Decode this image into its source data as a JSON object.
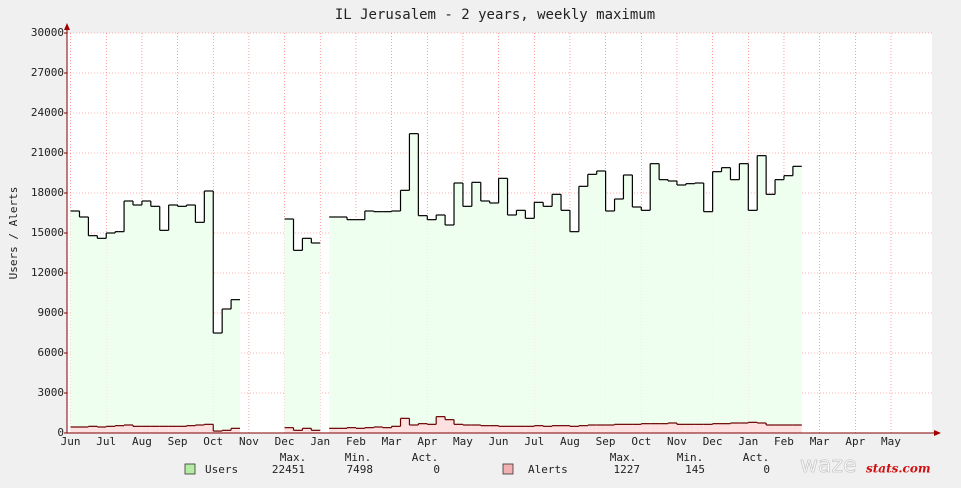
{
  "chart_data": {
    "type": "line",
    "title": "IL Jerusalem - 2 years, weekly maximum",
    "ylabel": "Users / Alerts",
    "step": true,
    "grid": true,
    "xlim": [
      -0.1,
      24.15
    ],
    "xticks": [
      {
        "value": 0,
        "label": "Jun"
      },
      {
        "value": 1,
        "label": "Jul"
      },
      {
        "value": 2,
        "label": "Aug"
      },
      {
        "value": 3,
        "label": "Sep"
      },
      {
        "value": 4,
        "label": "Oct"
      },
      {
        "value": 5,
        "label": "Nov"
      },
      {
        "value": 6,
        "label": "Dec"
      },
      {
        "value": 7,
        "label": "Jan"
      },
      {
        "value": 8,
        "label": "Feb"
      },
      {
        "value": 9,
        "label": "Mar"
      },
      {
        "value": 10,
        "label": "Apr"
      },
      {
        "value": 11,
        "label": "May"
      },
      {
        "value": 12,
        "label": "Jun"
      },
      {
        "value": 13,
        "label": "Jul"
      },
      {
        "value": 14,
        "label": "Aug"
      },
      {
        "value": 15,
        "label": "Sep"
      },
      {
        "value": 16,
        "label": "Oct"
      },
      {
        "value": 17,
        "label": "Nov"
      },
      {
        "value": 18,
        "label": "Dec"
      },
      {
        "value": 19,
        "label": "Jan"
      },
      {
        "value": 20,
        "label": "Feb"
      },
      {
        "value": 21,
        "label": "Mar"
      },
      {
        "value": 22,
        "label": "Apr"
      },
      {
        "value": 23,
        "label": "May"
      }
    ],
    "ylim": [
      0,
      30000
    ],
    "yticks": [
      0,
      3000,
      6000,
      9000,
      12000,
      15000,
      18000,
      21000,
      24000,
      27000,
      30000
    ],
    "x": [
      0,
      0.25,
      0.5,
      0.75,
      1,
      1.25,
      1.5,
      1.75,
      2,
      2.25,
      2.5,
      2.75,
      3,
      3.25,
      3.5,
      3.75,
      4,
      4.25,
      4.5,
      4.75,
      5,
      5.25,
      5.5,
      5.75,
      6,
      6.25,
      6.5,
      6.75,
      7,
      7.25,
      7.5,
      7.75,
      8,
      8.25,
      8.5,
      8.75,
      9,
      9.25,
      9.5,
      9.75,
      10,
      10.25,
      10.5,
      10.75,
      11,
      11.25,
      11.5,
      11.75,
      12,
      12.25,
      12.5,
      12.75,
      13,
      13.25,
      13.5,
      13.75,
      14,
      14.25,
      14.5,
      14.75,
      15,
      15.25,
      15.5,
      15.75,
      16,
      16.25,
      16.5,
      16.75,
      17,
      17.25,
      17.5,
      17.75,
      18,
      18.25,
      18.5,
      18.75,
      19,
      19.25,
      19.5,
      19.75,
      20,
      20.25
    ],
    "series": [
      {
        "name": "Users",
        "color": "#000000",
        "fill": "#efffef",
        "swatch": "#b4eca4",
        "values": [
          16650,
          16200,
          14800,
          14600,
          15000,
          15100,
          17400,
          17100,
          17400,
          17000,
          15200,
          17100,
          17000,
          17100,
          15800,
          18150,
          7498,
          9300,
          10000,
          null,
          null,
          null,
          null,
          null,
          16050,
          13700,
          14600,
          14250,
          null,
          16200,
          16200,
          16000,
          16000,
          16650,
          16600,
          16600,
          16650,
          18200,
          22451,
          16300,
          16000,
          16350,
          15600,
          18750,
          17000,
          18800,
          17400,
          17250,
          19100,
          16350,
          16700,
          16100,
          17300,
          17000,
          17900,
          16700,
          15100,
          18500,
          19400,
          19650,
          16650,
          17550,
          19350,
          16950,
          16700,
          20200,
          19000,
          18900,
          18600,
          18700,
          18750,
          16600,
          19600,
          19900,
          19000,
          20200,
          16700,
          20800,
          17900,
          19000,
          19300,
          20000
        ]
      },
      {
        "name": "Alerts",
        "color": "#6a0000",
        "fill": "#ffe0e0",
        "swatch": "#f2b0b0",
        "values": [
          450,
          450,
          500,
          450,
          500,
          550,
          600,
          500,
          500,
          500,
          500,
          500,
          500,
          550,
          600,
          650,
          145,
          200,
          350,
          null,
          null,
          null,
          null,
          null,
          400,
          200,
          350,
          200,
          null,
          350,
          350,
          400,
          350,
          400,
          450,
          400,
          500,
          1100,
          600,
          700,
          650,
          1227,
          1000,
          650,
          600,
          600,
          550,
          550,
          500,
          500,
          500,
          500,
          550,
          500,
          550,
          550,
          500,
          550,
          600,
          600,
          600,
          650,
          650,
          650,
          700,
          700,
          700,
          750,
          650,
          650,
          650,
          650,
          700,
          700,
          750,
          750,
          800,
          750,
          600,
          600,
          600,
          600
        ]
      }
    ],
    "legend": {
      "headers": [
        "Max.",
        "Min.",
        "Act."
      ],
      "stats": [
        [
          22451,
          7498,
          0
        ],
        [
          1227,
          145,
          0
        ]
      ]
    }
  },
  "logo": {
    "word": "waze",
    "suffix": "stats.com"
  }
}
